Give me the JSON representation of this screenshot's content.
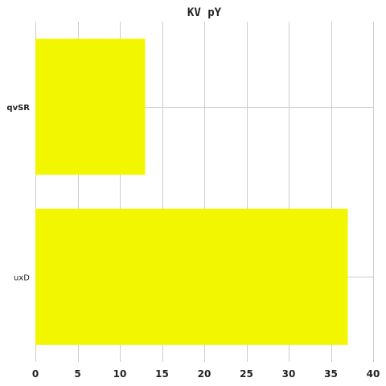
{
  "chart_data": {
    "type": "bar",
    "orientation": "horizontal",
    "title": "KV  pY",
    "xlabel": "",
    "ylabel": "",
    "categories": [
      "qvSR",
      "uxD"
    ],
    "category_label_bold": [
      true,
      false
    ],
    "values": [
      13,
      37
    ],
    "xlim": [
      0,
      40
    ],
    "xticks": [
      "0",
      "5",
      "10",
      "15",
      "20",
      "25",
      "30",
      "35",
      "40"
    ],
    "grid": true,
    "bar_color": "#f2f700"
  }
}
